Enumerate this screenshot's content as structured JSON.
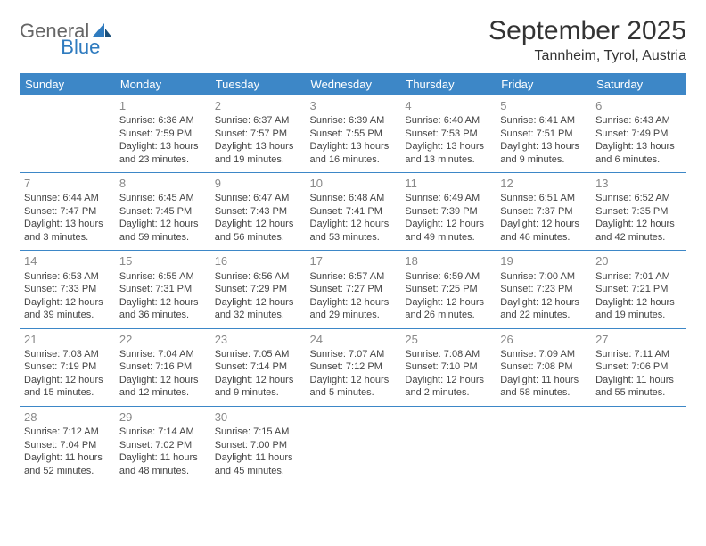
{
  "logo": {
    "part1": "General",
    "part2": "Blue"
  },
  "title": "September 2025",
  "location": "Tannheim, Tyrol, Austria",
  "colors": {
    "header_bg": "#3d87c7",
    "header_fg": "#ffffff",
    "daynum": "#888888",
    "cell_border": "#3d87c7",
    "logo_gray": "#666666",
    "logo_blue": "#2f7bbf",
    "text": "#444444"
  },
  "day_headers": [
    "Sunday",
    "Monday",
    "Tuesday",
    "Wednesday",
    "Thursday",
    "Friday",
    "Saturday"
  ],
  "weeks": [
    [
      null,
      {
        "n": "1",
        "sr": "Sunrise: 6:36 AM",
        "ss": "Sunset: 7:59 PM",
        "dl": "Daylight: 13 hours and 23 minutes."
      },
      {
        "n": "2",
        "sr": "Sunrise: 6:37 AM",
        "ss": "Sunset: 7:57 PM",
        "dl": "Daylight: 13 hours and 19 minutes."
      },
      {
        "n": "3",
        "sr": "Sunrise: 6:39 AM",
        "ss": "Sunset: 7:55 PM",
        "dl": "Daylight: 13 hours and 16 minutes."
      },
      {
        "n": "4",
        "sr": "Sunrise: 6:40 AM",
        "ss": "Sunset: 7:53 PM",
        "dl": "Daylight: 13 hours and 13 minutes."
      },
      {
        "n": "5",
        "sr": "Sunrise: 6:41 AM",
        "ss": "Sunset: 7:51 PM",
        "dl": "Daylight: 13 hours and 9 minutes."
      },
      {
        "n": "6",
        "sr": "Sunrise: 6:43 AM",
        "ss": "Sunset: 7:49 PM",
        "dl": "Daylight: 13 hours and 6 minutes."
      }
    ],
    [
      {
        "n": "7",
        "sr": "Sunrise: 6:44 AM",
        "ss": "Sunset: 7:47 PM",
        "dl": "Daylight: 13 hours and 3 minutes."
      },
      {
        "n": "8",
        "sr": "Sunrise: 6:45 AM",
        "ss": "Sunset: 7:45 PM",
        "dl": "Daylight: 12 hours and 59 minutes."
      },
      {
        "n": "9",
        "sr": "Sunrise: 6:47 AM",
        "ss": "Sunset: 7:43 PM",
        "dl": "Daylight: 12 hours and 56 minutes."
      },
      {
        "n": "10",
        "sr": "Sunrise: 6:48 AM",
        "ss": "Sunset: 7:41 PM",
        "dl": "Daylight: 12 hours and 53 minutes."
      },
      {
        "n": "11",
        "sr": "Sunrise: 6:49 AM",
        "ss": "Sunset: 7:39 PM",
        "dl": "Daylight: 12 hours and 49 minutes."
      },
      {
        "n": "12",
        "sr": "Sunrise: 6:51 AM",
        "ss": "Sunset: 7:37 PM",
        "dl": "Daylight: 12 hours and 46 minutes."
      },
      {
        "n": "13",
        "sr": "Sunrise: 6:52 AM",
        "ss": "Sunset: 7:35 PM",
        "dl": "Daylight: 12 hours and 42 minutes."
      }
    ],
    [
      {
        "n": "14",
        "sr": "Sunrise: 6:53 AM",
        "ss": "Sunset: 7:33 PM",
        "dl": "Daylight: 12 hours and 39 minutes."
      },
      {
        "n": "15",
        "sr": "Sunrise: 6:55 AM",
        "ss": "Sunset: 7:31 PM",
        "dl": "Daylight: 12 hours and 36 minutes."
      },
      {
        "n": "16",
        "sr": "Sunrise: 6:56 AM",
        "ss": "Sunset: 7:29 PM",
        "dl": "Daylight: 12 hours and 32 minutes."
      },
      {
        "n": "17",
        "sr": "Sunrise: 6:57 AM",
        "ss": "Sunset: 7:27 PM",
        "dl": "Daylight: 12 hours and 29 minutes."
      },
      {
        "n": "18",
        "sr": "Sunrise: 6:59 AM",
        "ss": "Sunset: 7:25 PM",
        "dl": "Daylight: 12 hours and 26 minutes."
      },
      {
        "n": "19",
        "sr": "Sunrise: 7:00 AM",
        "ss": "Sunset: 7:23 PM",
        "dl": "Daylight: 12 hours and 22 minutes."
      },
      {
        "n": "20",
        "sr": "Sunrise: 7:01 AM",
        "ss": "Sunset: 7:21 PM",
        "dl": "Daylight: 12 hours and 19 minutes."
      }
    ],
    [
      {
        "n": "21",
        "sr": "Sunrise: 7:03 AM",
        "ss": "Sunset: 7:19 PM",
        "dl": "Daylight: 12 hours and 15 minutes."
      },
      {
        "n": "22",
        "sr": "Sunrise: 7:04 AM",
        "ss": "Sunset: 7:16 PM",
        "dl": "Daylight: 12 hours and 12 minutes."
      },
      {
        "n": "23",
        "sr": "Sunrise: 7:05 AM",
        "ss": "Sunset: 7:14 PM",
        "dl": "Daylight: 12 hours and 9 minutes."
      },
      {
        "n": "24",
        "sr": "Sunrise: 7:07 AM",
        "ss": "Sunset: 7:12 PM",
        "dl": "Daylight: 12 hours and 5 minutes."
      },
      {
        "n": "25",
        "sr": "Sunrise: 7:08 AM",
        "ss": "Sunset: 7:10 PM",
        "dl": "Daylight: 12 hours and 2 minutes."
      },
      {
        "n": "26",
        "sr": "Sunrise: 7:09 AM",
        "ss": "Sunset: 7:08 PM",
        "dl": "Daylight: 11 hours and 58 minutes."
      },
      {
        "n": "27",
        "sr": "Sunrise: 7:11 AM",
        "ss": "Sunset: 7:06 PM",
        "dl": "Daylight: 11 hours and 55 minutes."
      }
    ],
    [
      {
        "n": "28",
        "sr": "Sunrise: 7:12 AM",
        "ss": "Sunset: 7:04 PM",
        "dl": "Daylight: 11 hours and 52 minutes."
      },
      {
        "n": "29",
        "sr": "Sunrise: 7:14 AM",
        "ss": "Sunset: 7:02 PM",
        "dl": "Daylight: 11 hours and 48 minutes."
      },
      {
        "n": "30",
        "sr": "Sunrise: 7:15 AM",
        "ss": "Sunset: 7:00 PM",
        "dl": "Daylight: 11 hours and 45 minutes."
      },
      null,
      null,
      null,
      null
    ]
  ]
}
